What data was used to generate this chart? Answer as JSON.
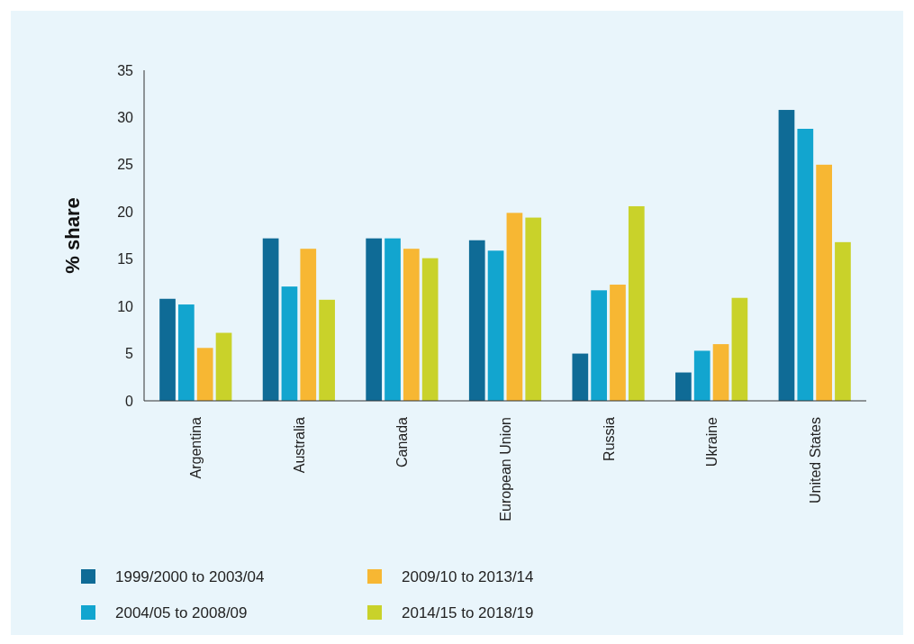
{
  "chart_data": {
    "type": "bar",
    "ylabel": "% share",
    "categories": [
      "Argentina",
      "Australia",
      "Canada",
      "European Union",
      "Russia",
      "Ukraine",
      "United States"
    ],
    "series": [
      {
        "name": "1999/2000 to 2003/04",
        "color": "#0f6b96",
        "values": [
          10.8,
          17.2,
          17.2,
          17.0,
          5.0,
          3.0,
          30.8
        ]
      },
      {
        "name": "2004/05 to 2008/09",
        "color": "#12a5cf",
        "values": [
          10.2,
          12.1,
          17.2,
          15.9,
          11.7,
          5.3,
          28.8
        ]
      },
      {
        "name": "2009/10 to 2013/14",
        "color": "#f7b733",
        "values": [
          5.6,
          16.1,
          16.1,
          19.9,
          12.3,
          6.0,
          25.0
        ]
      },
      {
        "name": "2014/15 to 2018/19",
        "color": "#c9d22a",
        "values": [
          7.2,
          10.7,
          15.1,
          19.4,
          20.6,
          10.9,
          16.8
        ]
      }
    ],
    "ylim": [
      0,
      35
    ],
    "yticks": [
      0,
      5,
      10,
      15,
      20,
      25,
      30,
      35
    ],
    "grid": false,
    "legend": "bottom"
  }
}
